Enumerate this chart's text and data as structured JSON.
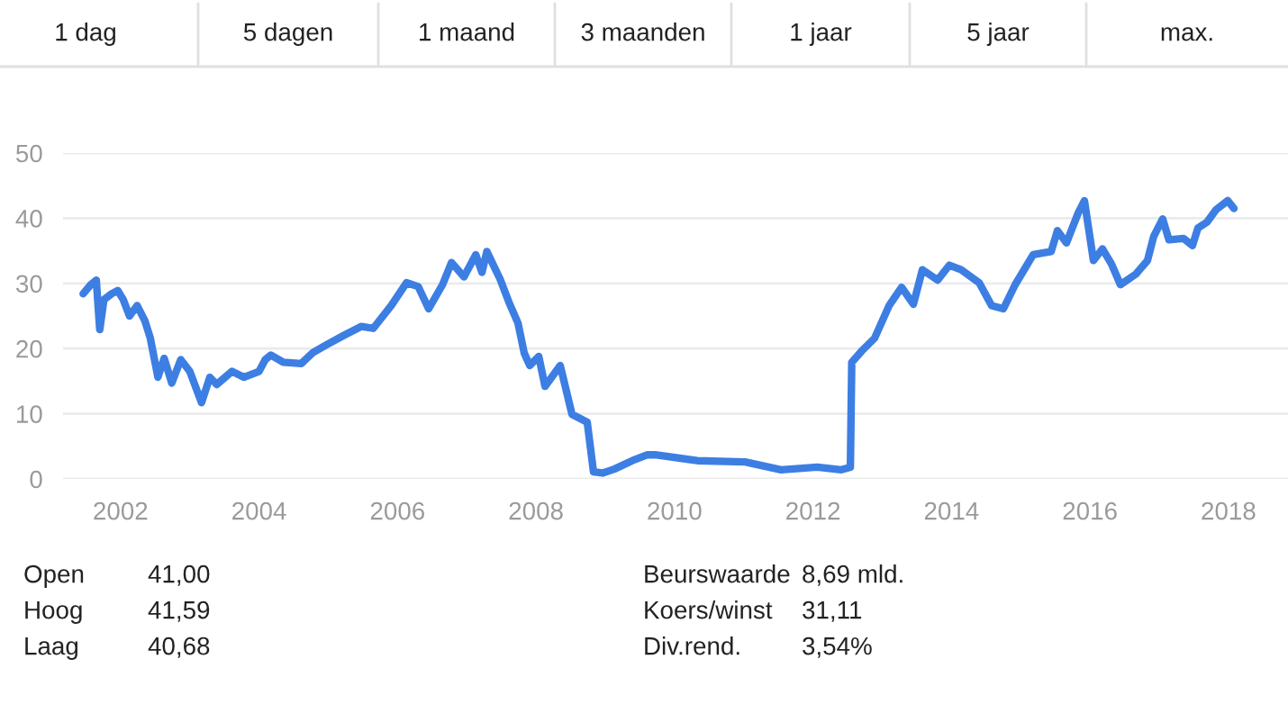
{
  "chart_data": {
    "type": "line",
    "x": [
      2001.46,
      2001.57,
      2001.65,
      2001.7,
      2001.76,
      2001.87,
      2001.96,
      2002.04,
      2002.13,
      2002.24,
      2002.35,
      2002.43,
      2002.54,
      2002.63,
      2002.74,
      2002.87,
      2003.0,
      2003.17,
      2003.29,
      2003.39,
      2003.61,
      2003.78,
      2004.0,
      2004.09,
      2004.17,
      2004.35,
      2004.61,
      2004.78,
      2004.96,
      2005.22,
      2005.48,
      2005.65,
      2005.91,
      2006.13,
      2006.3,
      2006.45,
      2006.65,
      2006.78,
      2006.96,
      2007.13,
      2007.22,
      2007.29,
      2007.48,
      2007.61,
      2007.74,
      2007.83,
      2007.91,
      2008.04,
      2008.13,
      2008.35,
      2008.52,
      2008.74,
      2008.83,
      2008.96,
      2009.13,
      2009.39,
      2009.61,
      2009.72,
      2010.33,
      2011.02,
      2011.54,
      2012.06,
      2012.41,
      2012.54,
      2012.56,
      2012.71,
      2012.89,
      2013.1,
      2013.28,
      2013.45,
      2013.58,
      2013.8,
      2013.97,
      2014.14,
      2014.4,
      2014.58,
      2014.75,
      2014.92,
      2015.18,
      2015.44,
      2015.53,
      2015.66,
      2015.83,
      2015.92,
      2016.05,
      2016.18,
      2016.31,
      2016.44,
      2016.66,
      2016.83,
      2016.92,
      2017.05,
      2017.14,
      2017.35,
      2017.48,
      2017.56,
      2017.69,
      2017.82,
      2017.99,
      2018.08
    ],
    "series": [
      {
        "color": "#3d7ee3",
        "values": [
          28.4,
          29.8,
          30.5,
          22.9,
          27.5,
          28.4,
          28.9,
          27.5,
          25,
          26.6,
          24.3,
          21.6,
          15.6,
          18.5,
          14.7,
          18.3,
          16.5,
          11.7,
          15.6,
          14.5,
          16.5,
          15.6,
          16.5,
          18.3,
          19,
          17.9,
          17.7,
          19.4,
          20.5,
          22,
          23.4,
          23.1,
          26.6,
          30.1,
          29.5,
          26.1,
          29.8,
          33.2,
          31,
          34.4,
          31.7,
          34.9,
          30.7,
          27.1,
          23.9,
          19.3,
          17.4,
          18.8,
          14.2,
          17.4,
          9.9,
          8.7,
          1.1,
          0.9,
          1.5,
          2.8,
          3.7,
          3.7,
          2.8,
          2.6,
          1.4,
          1.8,
          1.4,
          1.8,
          17.9,
          19.7,
          21.6,
          26.6,
          29.4,
          26.8,
          32.1,
          30.5,
          32.8,
          32.1,
          30.1,
          26.6,
          26.1,
          29.8,
          34.4,
          34.9,
          38.1,
          36.2,
          40.8,
          42.7,
          33.5,
          35.3,
          33,
          29.8,
          31.4,
          33.5,
          37.2,
          39.9,
          36.7,
          36.9,
          35.8,
          38.5,
          39.4,
          41.3,
          42.7,
          41.5
        ]
      }
    ],
    "xlim": [
      2001.17,
      2018.86
    ],
    "xticks": [
      2002,
      2004,
      2006,
      2008,
      2010,
      2012,
      2014,
      2016,
      2018
    ],
    "ylim": [
      0,
      50
    ],
    "yticks": [
      0,
      10,
      20,
      30,
      40,
      50
    ],
    "grid": "y",
    "annotations": [
      "1 dag",
      "5 dagen",
      "1 maand",
      "3 maanden",
      "1 jaar",
      "5 jaar",
      "max.",
      "Open",
      "41,00",
      "Hoog",
      "41,59",
      "Laag",
      "40,68",
      "Beurswaarde",
      "8,69 mld.",
      "Koers/winst",
      "31,11",
      "Div.rend.",
      "3,54%"
    ]
  }
}
